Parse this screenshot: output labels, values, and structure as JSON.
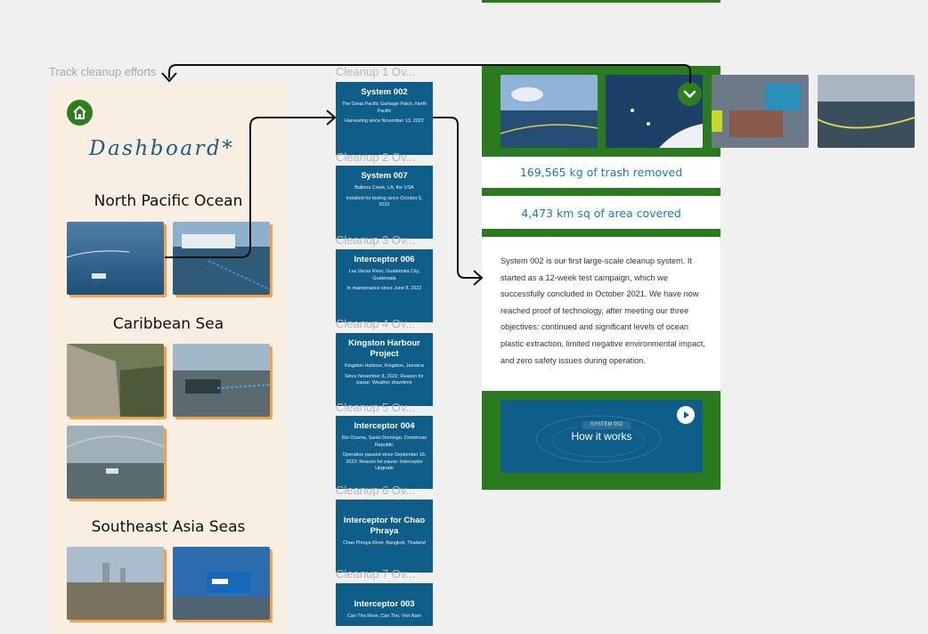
{
  "frame_labels": {
    "dashboard": "Track cleanup efforts",
    "cleanups": "Cleanup 1 Ov..."
  },
  "dashboard": {
    "title": "Dashboard*",
    "regions": [
      "North Pacific Ocean",
      "Caribbean Sea",
      "Southeast Asia Seas"
    ]
  },
  "cards": [
    {
      "label": "Cleanup 1 Ov...",
      "title": "System 002",
      "sub1": "The Great Pacific Garbage Patch, North Pacific",
      "sub2": "Harvesting since November 13, 2022"
    },
    {
      "label": "Cleanup 2 Ov...",
      "title": "System 007",
      "sub1": "Ballona Creek, LA, the USA",
      "sub2": "Installed for testing since October 5, 2022"
    },
    {
      "label": "Cleanup 3 Ov...",
      "title": "Interceptor 006",
      "sub1": "Las Vacas River, Guatemala City, Guatemala",
      "sub2": "In maintenance since June 8, 2022"
    },
    {
      "label": "Cleanup 4 Ov...",
      "title": "Kingston Harbour Project",
      "sub1": "Kingston Harbour, Kingston, Jamaica",
      "sub2": "Since November 8, 2022; Reason for pause: Weather downtime"
    },
    {
      "label": "Cleanup 5 Ov...",
      "title": "Interceptor 004",
      "sub1": "Rio Ozama, Santo Domingo, Dominican Republic",
      "sub2": "Operation paused since September 16, 2022; Reason for pause: Interceptor Upgrade"
    },
    {
      "label": "Cleanup 6 Ov...",
      "title": "Interceptor for Chao Phraya",
      "sub1": "Chao Phraya River, Bangkok, Thailand",
      "sub2": ""
    },
    {
      "label": "Cleanup 7 Ov...",
      "title": "Interceptor 003",
      "sub1": "Can Tho River, Can Tho, Viet Nam",
      "sub2": ""
    }
  ],
  "detail": {
    "stat1": "169,565 kg of trash removed",
    "stat2": "4,473 km sq of area covered",
    "description": "System 002 is our first large-scale cleanup system. It started as a 12-week test campaign, which we successfully concluded in October 2021. We have now reached proof of technology, after meeting our three objectives: continued and significant levels of ocean plastic extraction, limited negative environmental impact, and zero safety issues during operation.",
    "video_badge": "SYSTEM 002",
    "video_title": "How it works"
  },
  "icons": [
    "home-icon",
    "chevron-down-icon",
    "play-icon"
  ],
  "colors": {
    "primary_blue": "#0f5e8a",
    "green": "#2c7a1f",
    "cream": "#f8eee2",
    "shadow_orange": "#f4a04a",
    "stat_blue": "#1a7ab5"
  }
}
